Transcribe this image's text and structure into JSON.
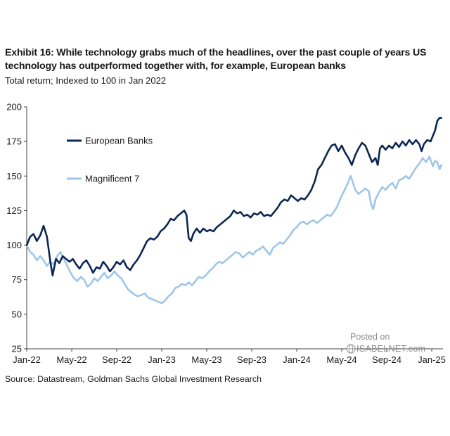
{
  "header": {
    "title": "Exhibit 16: While technology grabs much of the headlines, over the past couple of years US technology has outperformed together with, for example, European banks",
    "subtitle": "Total return; Indexed to 100 in Jan 2022"
  },
  "footer": {
    "source": "Source: Datastream, Goldman Sachs Global Investment Research"
  },
  "watermark": {
    "posted": "Posted on",
    "site": "ISABELNET.com"
  },
  "colors": {
    "european_banks": "#0b2752",
    "magnificent_7": "#9fc6e7",
    "axis": "#404040",
    "text": "#1a1a1a"
  },
  "chart_data": {
    "type": "line",
    "title": "Total return; Indexed to 100 in Jan 2022",
    "xlabel": "",
    "ylabel": "",
    "ylim": [
      25,
      200
    ],
    "yticks": [
      25,
      50,
      75,
      100,
      125,
      150,
      175,
      200
    ],
    "xlim": [
      0,
      37
    ],
    "xticks": [
      {
        "t": 0,
        "label": "Jan-22"
      },
      {
        "t": 4,
        "label": "May-22"
      },
      {
        "t": 8,
        "label": "Sep-22"
      },
      {
        "t": 12,
        "label": "Jan-23"
      },
      {
        "t": 16,
        "label": "May-23"
      },
      {
        "t": 20,
        "label": "Sep-23"
      },
      {
        "t": 24,
        "label": "Jan-24"
      },
      {
        "t": 28,
        "label": "May-24"
      },
      {
        "t": 32,
        "label": "Sep-24"
      },
      {
        "t": 36,
        "label": "Jan-25"
      }
    ],
    "x_unit": "months since Jan 2022",
    "legend": {
      "position": "upper-left"
    },
    "series": [
      {
        "name": "European Banks",
        "color": "#0b2752",
        "points": [
          [
            0,
            100
          ],
          [
            0.3,
            106
          ],
          [
            0.6,
            108
          ],
          [
            0.9,
            103
          ],
          [
            1.2,
            107
          ],
          [
            1.5,
            114
          ],
          [
            1.8,
            106
          ],
          [
            2.1,
            88
          ],
          [
            2.3,
            78
          ],
          [
            2.6,
            90
          ],
          [
            2.9,
            87
          ],
          [
            3.2,
            92
          ],
          [
            3.5,
            90
          ],
          [
            3.8,
            88
          ],
          [
            4.1,
            90
          ],
          [
            4.4,
            86
          ],
          [
            4.7,
            83
          ],
          [
            5.0,
            87
          ],
          [
            5.3,
            89
          ],
          [
            5.6,
            85
          ],
          [
            5.9,
            80
          ],
          [
            6.2,
            84
          ],
          [
            6.5,
            83
          ],
          [
            6.8,
            88
          ],
          [
            7.1,
            85
          ],
          [
            7.4,
            81
          ],
          [
            7.7,
            84
          ],
          [
            8.0,
            88
          ],
          [
            8.3,
            86
          ],
          [
            8.6,
            89
          ],
          [
            8.9,
            84
          ],
          [
            9.2,
            82
          ],
          [
            9.5,
            86
          ],
          [
            9.8,
            89
          ],
          [
            10.1,
            93
          ],
          [
            10.4,
            98
          ],
          [
            10.7,
            103
          ],
          [
            11.0,
            105
          ],
          [
            11.3,
            104
          ],
          [
            11.6,
            106
          ],
          [
            11.9,
            110
          ],
          [
            12.2,
            112
          ],
          [
            12.5,
            115
          ],
          [
            12.8,
            119
          ],
          [
            13.1,
            118
          ],
          [
            13.4,
            121
          ],
          [
            13.7,
            123
          ],
          [
            14.0,
            125
          ],
          [
            14.2,
            122
          ],
          [
            14.4,
            105
          ],
          [
            14.6,
            103
          ],
          [
            14.8,
            108
          ],
          [
            15.1,
            112
          ],
          [
            15.4,
            109
          ],
          [
            15.7,
            112
          ],
          [
            16.0,
            110
          ],
          [
            16.3,
            111
          ],
          [
            16.6,
            110
          ],
          [
            16.9,
            113
          ],
          [
            17.2,
            115
          ],
          [
            17.5,
            117
          ],
          [
            17.8,
            119
          ],
          [
            18.1,
            121
          ],
          [
            18.4,
            125
          ],
          [
            18.7,
            123
          ],
          [
            19.0,
            124
          ],
          [
            19.3,
            121
          ],
          [
            19.6,
            122
          ],
          [
            19.9,
            120
          ],
          [
            20.2,
            123
          ],
          [
            20.5,
            122
          ],
          [
            20.8,
            124
          ],
          [
            21.1,
            121
          ],
          [
            21.4,
            122
          ],
          [
            21.7,
            121
          ],
          [
            22.0,
            124
          ],
          [
            22.3,
            127
          ],
          [
            22.6,
            131
          ],
          [
            22.9,
            133
          ],
          [
            23.2,
            132
          ],
          [
            23.5,
            136
          ],
          [
            23.8,
            134
          ],
          [
            24.1,
            132
          ],
          [
            24.4,
            134
          ],
          [
            24.7,
            133
          ],
          [
            25.0,
            136
          ],
          [
            25.3,
            140
          ],
          [
            25.6,
            146
          ],
          [
            25.9,
            155
          ],
          [
            26.2,
            158
          ],
          [
            26.5,
            163
          ],
          [
            26.8,
            168
          ],
          [
            27.1,
            172
          ],
          [
            27.4,
            173
          ],
          [
            27.7,
            168
          ],
          [
            28.0,
            172
          ],
          [
            28.3,
            167
          ],
          [
            28.6,
            163
          ],
          [
            28.9,
            158
          ],
          [
            29.2,
            165
          ],
          [
            29.5,
            170
          ],
          [
            29.8,
            174
          ],
          [
            30.1,
            172
          ],
          [
            30.4,
            166
          ],
          [
            30.7,
            160
          ],
          [
            31.0,
            163
          ],
          [
            31.2,
            158
          ],
          [
            31.4,
            170
          ],
          [
            31.6,
            172
          ],
          [
            31.9,
            169
          ],
          [
            32.2,
            172
          ],
          [
            32.5,
            170
          ],
          [
            32.8,
            174
          ],
          [
            33.1,
            171
          ],
          [
            33.4,
            175
          ],
          [
            33.7,
            172
          ],
          [
            34.0,
            176
          ],
          [
            34.3,
            173
          ],
          [
            34.6,
            176
          ],
          [
            34.9,
            173
          ],
          [
            35.1,
            168
          ],
          [
            35.3,
            173
          ],
          [
            35.6,
            176
          ],
          [
            35.9,
            175
          ],
          [
            36.1,
            179
          ],
          [
            36.3,
            183
          ],
          [
            36.5,
            190
          ],
          [
            36.7,
            192
          ],
          [
            36.85,
            192
          ]
        ]
      },
      {
        "name": "Magnificent 7",
        "color": "#9fc6e7",
        "points": [
          [
            0,
            100
          ],
          [
            0.3,
            95
          ],
          [
            0.6,
            93
          ],
          [
            0.9,
            89
          ],
          [
            1.2,
            92
          ],
          [
            1.5,
            89
          ],
          [
            1.8,
            85
          ],
          [
            2.1,
            88
          ],
          [
            2.4,
            86
          ],
          [
            2.7,
            92
          ],
          [
            3.0,
            95
          ],
          [
            3.3,
            90
          ],
          [
            3.6,
            85
          ],
          [
            3.9,
            80
          ],
          [
            4.2,
            76
          ],
          [
            4.5,
            74
          ],
          [
            4.8,
            77
          ],
          [
            5.1,
            75
          ],
          [
            5.4,
            70
          ],
          [
            5.7,
            72
          ],
          [
            6.0,
            76
          ],
          [
            6.3,
            74
          ],
          [
            6.6,
            77
          ],
          [
            6.9,
            80
          ],
          [
            7.2,
            76
          ],
          [
            7.5,
            78
          ],
          [
            7.8,
            81
          ],
          [
            8.1,
            78
          ],
          [
            8.4,
            76
          ],
          [
            8.7,
            72
          ],
          [
            9.0,
            68
          ],
          [
            9.3,
            66
          ],
          [
            9.6,
            64
          ],
          [
            9.9,
            63
          ],
          [
            10.2,
            64
          ],
          [
            10.5,
            65
          ],
          [
            10.8,
            62
          ],
          [
            11.1,
            61
          ],
          [
            11.4,
            60
          ],
          [
            11.7,
            59
          ],
          [
            12.0,
            58
          ],
          [
            12.3,
            60
          ],
          [
            12.6,
            63
          ],
          [
            12.9,
            65
          ],
          [
            13.2,
            69
          ],
          [
            13.5,
            70
          ],
          [
            13.8,
            72
          ],
          [
            14.1,
            71
          ],
          [
            14.4,
            73
          ],
          [
            14.7,
            71
          ],
          [
            15.0,
            74
          ],
          [
            15.3,
            77
          ],
          [
            15.6,
            76
          ],
          [
            15.9,
            78
          ],
          [
            16.2,
            81
          ],
          [
            16.5,
            83
          ],
          [
            16.8,
            86
          ],
          [
            17.1,
            88
          ],
          [
            17.4,
            87
          ],
          [
            17.7,
            89
          ],
          [
            18.0,
            91
          ],
          [
            18.3,
            93
          ],
          [
            18.6,
            95
          ],
          [
            18.9,
            94
          ],
          [
            19.2,
            91
          ],
          [
            19.5,
            93
          ],
          [
            19.8,
            95
          ],
          [
            20.1,
            93
          ],
          [
            20.4,
            96
          ],
          [
            20.7,
            97
          ],
          [
            21.0,
            99
          ],
          [
            21.3,
            96
          ],
          [
            21.6,
            93
          ],
          [
            21.9,
            98
          ],
          [
            22.2,
            100
          ],
          [
            22.5,
            102
          ],
          [
            22.8,
            101
          ],
          [
            23.1,
            104
          ],
          [
            23.4,
            107
          ],
          [
            23.7,
            111
          ],
          [
            24.0,
            113
          ],
          [
            24.3,
            116
          ],
          [
            24.6,
            117
          ],
          [
            24.9,
            115
          ],
          [
            25.2,
            117
          ],
          [
            25.5,
            118
          ],
          [
            25.8,
            116
          ],
          [
            26.1,
            118
          ],
          [
            26.4,
            120
          ],
          [
            26.7,
            122
          ],
          [
            27.0,
            121
          ],
          [
            27.3,
            124
          ],
          [
            27.6,
            128
          ],
          [
            27.9,
            134
          ],
          [
            28.2,
            139
          ],
          [
            28.5,
            144
          ],
          [
            28.8,
            150
          ],
          [
            29.0,
            145
          ],
          [
            29.2,
            140
          ],
          [
            29.5,
            137
          ],
          [
            29.8,
            139
          ],
          [
            30.1,
            141
          ],
          [
            30.4,
            139
          ],
          [
            30.6,
            130
          ],
          [
            30.8,
            126
          ],
          [
            31.0,
            133
          ],
          [
            31.3,
            138
          ],
          [
            31.6,
            142
          ],
          [
            31.9,
            140
          ],
          [
            32.2,
            143
          ],
          [
            32.5,
            145
          ],
          [
            32.8,
            141
          ],
          [
            33.1,
            147
          ],
          [
            33.4,
            148
          ],
          [
            33.7,
            150
          ],
          [
            34.0,
            148
          ],
          [
            34.3,
            152
          ],
          [
            34.6,
            156
          ],
          [
            34.9,
            159
          ],
          [
            35.2,
            163
          ],
          [
            35.5,
            160
          ],
          [
            35.8,
            164
          ],
          [
            36.1,
            157
          ],
          [
            36.3,
            161
          ],
          [
            36.5,
            160
          ],
          [
            36.7,
            155
          ],
          [
            36.85,
            158
          ]
        ]
      }
    ]
  }
}
